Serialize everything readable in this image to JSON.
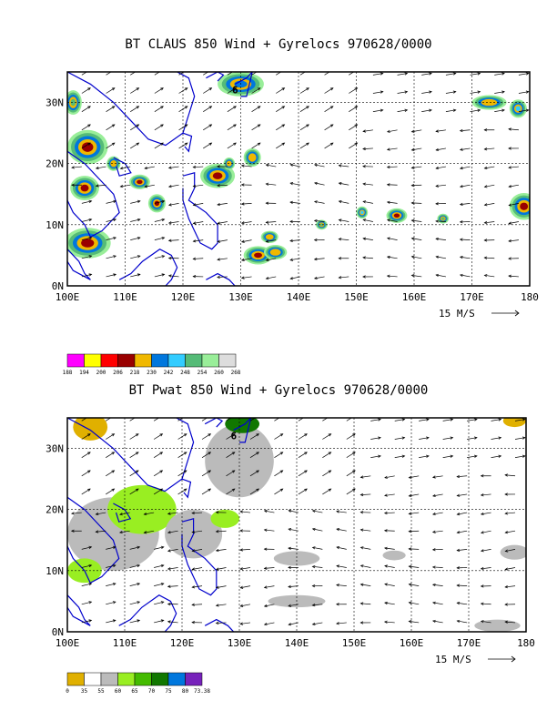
{
  "panels": [
    {
      "title": "BT CLAUS 850 Wind + Gyrelocs 970628/0000",
      "field": "CLAUS brightness temperature",
      "lat_labels": [
        "30N",
        "20N",
        "10N",
        "0N"
      ],
      "lon_labels": [
        "100E",
        "110E",
        "120E",
        "130E",
        "140E",
        "150E",
        "160E",
        "170E",
        "180"
      ],
      "lat_range": [
        0,
        35
      ],
      "lon_range": [
        100,
        180
      ],
      "reference_vector": "15 M/S",
      "legend": {
        "ticks": [
          "188",
          "194",
          "200",
          "206",
          "218",
          "230",
          "242",
          "248",
          "254",
          "260",
          "268"
        ],
        "colors": [
          "#ff00ff",
          "#ffff00",
          "#ff0000",
          "#990000",
          "#f0b800",
          "#0077dd",
          "#33ccff",
          "#55bb77",
          "#99ee99",
          "#dddddd"
        ]
      },
      "gyre_marker": "6",
      "features": [
        {
          "type": "convection",
          "lon": 103.5,
          "lat": 22.7,
          "rx": 3.5,
          "ry": 2.8,
          "core": "#990000"
        },
        {
          "type": "convection",
          "lon": 103,
          "lat": 16,
          "rx": 2.5,
          "ry": 2,
          "core": "#990000"
        },
        {
          "type": "convection",
          "lon": 103.5,
          "lat": 7,
          "rx": 4,
          "ry": 2.5,
          "core": "#990000"
        },
        {
          "type": "convection",
          "lon": 108,
          "lat": 20,
          "rx": 1.2,
          "ry": 1.2,
          "core": "#f0b800"
        },
        {
          "type": "convection",
          "lon": 112.5,
          "lat": 17,
          "rx": 1.8,
          "ry": 1.2,
          "core": "#990000"
        },
        {
          "type": "convection",
          "lon": 115.5,
          "lat": 13.5,
          "rx": 1.5,
          "ry": 1.5,
          "core": "#990000"
        },
        {
          "type": "convection",
          "lon": 126,
          "lat": 18,
          "rx": 3,
          "ry": 2,
          "core": "#990000"
        },
        {
          "type": "convection",
          "lon": 128,
          "lat": 20,
          "rx": 1,
          "ry": 1,
          "core": "#f0b800"
        },
        {
          "type": "convection",
          "lon": 132,
          "lat": 21,
          "rx": 1.5,
          "ry": 1.5,
          "core": "#f0b800"
        },
        {
          "type": "convection",
          "lon": 133,
          "lat": 5,
          "rx": 2.5,
          "ry": 1.5,
          "core": "#990000"
        },
        {
          "type": "convection",
          "lon": 136,
          "lat": 5.5,
          "rx": 2,
          "ry": 1.2,
          "core": "#f0b800"
        },
        {
          "type": "convection",
          "lon": 135,
          "lat": 8,
          "rx": 1.5,
          "ry": 1,
          "core": "#f0b800"
        },
        {
          "type": "convection",
          "lon": 157,
          "lat": 11.5,
          "rx": 1.8,
          "ry": 1.2,
          "core": "#990000"
        },
        {
          "type": "convection",
          "lon": 151,
          "lat": 12,
          "rx": 1,
          "ry": 1,
          "core": "#33ccff"
        },
        {
          "type": "convection",
          "lon": 179,
          "lat": 13,
          "rx": 2.5,
          "ry": 2.2,
          "core": "#990000"
        },
        {
          "type": "convection",
          "lon": 173,
          "lat": 30,
          "rx": 3,
          "ry": 1.2,
          "core": "#f0b800"
        },
        {
          "type": "convection",
          "lon": 178,
          "lat": 29,
          "rx": 1.5,
          "ry": 1.5,
          "core": "#33ccff"
        },
        {
          "type": "convection",
          "lon": 130,
          "lat": 33,
          "rx": 4,
          "ry": 2,
          "core": "#0077dd"
        },
        {
          "type": "convection",
          "lon": 101,
          "lat": 30,
          "rx": 1.5,
          "ry": 2,
          "core": "#55bb77"
        },
        {
          "type": "convection",
          "lon": 144,
          "lat": 10,
          "rx": 1,
          "ry": 0.8,
          "core": "#55bb77"
        },
        {
          "type": "convection",
          "lon": 165,
          "lat": 11,
          "rx": 1,
          "ry": 0.8,
          "core": "#55bb77"
        }
      ]
    },
    {
      "title": "BT Pwat 850 Wind + Gyrelocs 970628/0000",
      "field": "precipitable water",
      "lat_labels": [
        "30N",
        "20N",
        "10N",
        "0N"
      ],
      "lon_labels": [
        "100E",
        "110E",
        "120E",
        "130E",
        "140E",
        "150E",
        "160E",
        "170E",
        "180"
      ],
      "lat_range": [
        0,
        35
      ],
      "lon_range": [
        100,
        180
      ],
      "reference_vector": "15 M/S",
      "legend": {
        "ticks": [
          "0",
          "35",
          "55",
          "60",
          "65",
          "70",
          "75",
          "80",
          "73.38"
        ],
        "colors": [
          "#e0b000",
          "#ffffff",
          "#bbbbbb",
          "#99ee22",
          "#44bb00",
          "#117700",
          "#0077dd",
          "#7722bb"
        ]
      },
      "gyre_marker": "6",
      "features": [
        {
          "type": "moist",
          "lon": 104,
          "lat": 33.5,
          "rx": 3,
          "ry": 2.2,
          "core": "#e0b000"
        },
        {
          "type": "moist",
          "lon": 178,
          "lat": 34.5,
          "rx": 2,
          "ry": 1,
          "core": "#e0b000"
        },
        {
          "type": "moist",
          "lon": 108,
          "lat": 16,
          "rx": 8,
          "ry": 6,
          "core": "#bbbbbb"
        },
        {
          "type": "moist",
          "lon": 113,
          "lat": 20,
          "rx": 6,
          "ry": 4,
          "core": "#99ee22"
        },
        {
          "type": "moist",
          "lon": 103,
          "lat": 10,
          "rx": 3,
          "ry": 2,
          "core": "#99ee22"
        },
        {
          "type": "moist",
          "lon": 122,
          "lat": 16,
          "rx": 5,
          "ry": 4,
          "core": "#bbbbbb"
        },
        {
          "type": "moist",
          "lon": 127.5,
          "lat": 18.5,
          "rx": 2.5,
          "ry": 1.5,
          "core": "#99ee22"
        },
        {
          "type": "moist",
          "lon": 130,
          "lat": 28,
          "rx": 6,
          "ry": 6,
          "core": "#bbbbbb"
        },
        {
          "type": "moist",
          "lon": 140,
          "lat": 12,
          "rx": 4,
          "ry": 1.2,
          "core": "#bbbbbb"
        },
        {
          "type": "moist",
          "lon": 140,
          "lat": 5,
          "rx": 5,
          "ry": 1,
          "core": "#bbbbbb"
        },
        {
          "type": "moist",
          "lon": 157,
          "lat": 12.5,
          "rx": 2,
          "ry": 0.8,
          "core": "#bbbbbb"
        },
        {
          "type": "moist",
          "lon": 178,
          "lat": 13,
          "rx": 2.5,
          "ry": 1.2,
          "core": "#bbbbbb"
        },
        {
          "type": "moist",
          "lon": 175,
          "lat": 1,
          "rx": 4,
          "ry": 1,
          "core": "#bbbbbb"
        },
        {
          "type": "moist",
          "lon": 130.5,
          "lat": 34,
          "rx": 3,
          "ry": 1.5,
          "core": "#117700"
        }
      ]
    }
  ]
}
